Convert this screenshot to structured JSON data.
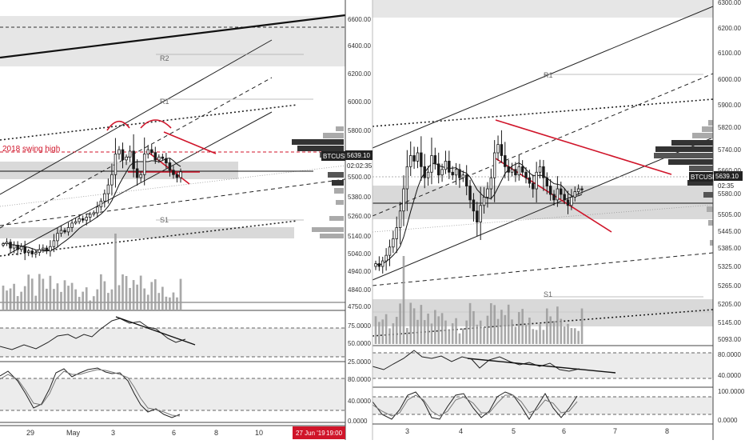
{
  "colors": {
    "background": "#ffffff",
    "candle": "#1a1a1a",
    "zone": "#d9d9d9",
    "resistance_zone": "#e6e6e6",
    "red": "#d0152a",
    "indicator_band": "#ececec",
    "volume": "#9a9a9a",
    "axis_text": "#333333"
  },
  "chart_data": [
    {
      "type": "candlestick",
      "panel": "left",
      "symbol": "BTCUSD",
      "last_price": "5639.10",
      "countdown": "02:02:35",
      "annotation": "2018 swing high",
      "levels": [
        "R2",
        "R1",
        "S1"
      ],
      "price_ticks": [
        "6600.00",
        "6400.00",
        "6200.00",
        "6000.00",
        "5800.00",
        "5500.00",
        "5380.00",
        "5260.00",
        "5140.00",
        "5040.00",
        "4940.00",
        "4840.00",
        "4750.00"
      ],
      "price_ylim": [
        4750,
        6700
      ],
      "x_ticks": [
        "29",
        "May",
        "3",
        "6",
        "8",
        "10"
      ],
      "crosshair_date": "27 Jun '19",
      "crosshair_time": "19:00",
      "rsi_ticks": [
        "75.0000",
        "50.0000",
        "25.0000"
      ],
      "stoch_ticks": [
        "80.0000",
        "40.0000",
        "0.0000"
      ],
      "close": [
        5150,
        5160,
        5120,
        5140,
        5110,
        5130,
        5090,
        5100,
        5080,
        5090,
        5110,
        5120,
        5100,
        5130,
        5170,
        5220,
        5240,
        5230,
        5260,
        5290,
        5300,
        5320,
        5310,
        5330,
        5350,
        5360,
        5400,
        5440,
        5490,
        5550,
        5620,
        5760,
        5790,
        5720,
        5740,
        5780,
        5660,
        5600,
        5620,
        5760,
        5790,
        5770,
        5720,
        5740,
        5730,
        5700,
        5650,
        5620,
        5600,
        5639
      ]
    },
    {
      "type": "candlestick",
      "panel": "right",
      "symbol": "BTCUSD",
      "last_price": "5639.10",
      "countdown": "02:35",
      "levels": [
        "R1",
        "S1"
      ],
      "price_ticks": [
        "6300.00",
        "6200.00",
        "6100.00",
        "6000.00",
        "5900.00",
        "5820.00",
        "5740.00",
        "5660.00",
        "5580.00",
        "5505.00",
        "5445.00",
        "5385.00",
        "5325.00",
        "5265.00",
        "5205.00",
        "5145.00",
        "5093.00"
      ],
      "price_ylim": [
        5080,
        6310
      ],
      "x_ticks": [
        "3",
        "4",
        "5",
        "6",
        "7",
        "8"
      ],
      "rsi_ticks": [
        "80.0000",
        "40.0000"
      ],
      "stoch_ticks": [
        "100.0000",
        "0.0000"
      ],
      "close": [
        5370,
        5360,
        5380,
        5400,
        5430,
        5460,
        5500,
        5560,
        5640,
        5720,
        5760,
        5740,
        5770,
        5720,
        5680,
        5700,
        5760,
        5730,
        5690,
        5710,
        5740,
        5700,
        5690,
        5710,
        5680,
        5690,
        5650,
        5600,
        5560,
        5520,
        5580,
        5610,
        5640,
        5680,
        5770,
        5800,
        5760,
        5720,
        5700,
        5710,
        5690,
        5720,
        5700,
        5680,
        5660,
        5640,
        5700,
        5720,
        5680,
        5650,
        5620,
        5600,
        5640,
        5620,
        5600,
        5580,
        5610,
        5630,
        5640,
        5639
      ]
    }
  ]
}
